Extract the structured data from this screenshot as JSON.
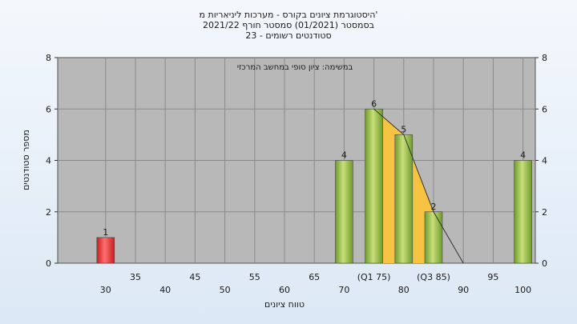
{
  "chart_data": {
    "type": "bar",
    "title_lines": [
      "היסטוגרמת ציונים בקורס - מערכות ליניאריות מ'",
      "בסמסטר  (01/2021)  סמסטר חורף 2021/22",
      "23 - סטודנטים רשומים"
    ],
    "annotation": "במשימה: ציון סופי במחשב המרכזי",
    "xlabel": "טווח ציונים",
    "ylabel": "מספר סטודנטים",
    "ylim": [
      0,
      8
    ],
    "yticks": [
      0,
      2,
      4,
      6,
      8
    ],
    "grid": true,
    "x_tick_labels": [
      {
        "x": 30,
        "label": "30",
        "row": 2
      },
      {
        "x": 35,
        "label": "35",
        "row": 1
      },
      {
        "x": 40,
        "label": "40",
        "row": 2
      },
      {
        "x": 45,
        "label": "45",
        "row": 1
      },
      {
        "x": 50,
        "label": "50",
        "row": 2
      },
      {
        "x": 55,
        "label": "55",
        "row": 1
      },
      {
        "x": 60,
        "label": "60",
        "row": 2
      },
      {
        "x": 65,
        "label": "65",
        "row": 1
      },
      {
        "x": 70,
        "label": "70",
        "row": 2
      },
      {
        "x": 75,
        "label": "(Q1 75)",
        "row": 1
      },
      {
        "x": 80,
        "label": "80",
        "row": 2
      },
      {
        "x": 85,
        "label": "(Q3 85)",
        "row": 1
      },
      {
        "x": 90,
        "label": "90",
        "row": 2
      },
      {
        "x": 95,
        "label": "95",
        "row": 1
      },
      {
        "x": 100,
        "label": "100",
        "row": 2
      }
    ],
    "bars": [
      {
        "x": 30,
        "value": 1,
        "color": "red"
      },
      {
        "x": 70,
        "value": 4,
        "color": "green"
      },
      {
        "x": 75,
        "value": 6,
        "color": "green"
      },
      {
        "x": 80,
        "value": 5,
        "color": "green"
      },
      {
        "x": 85,
        "value": 2,
        "color": "green"
      },
      {
        "x": 100,
        "value": 4,
        "color": "green"
      }
    ],
    "interquartile_area": {
      "color": "#f5c242",
      "points": [
        [
          75,
          6
        ],
        [
          80,
          5
        ],
        [
          85,
          2
        ]
      ]
    },
    "trend_line": {
      "points": [
        [
          75,
          6
        ],
        [
          80,
          5
        ],
        [
          85,
          2
        ],
        [
          90,
          0
        ]
      ]
    },
    "colors": {
      "plot_bg": "#b8b8b8",
      "green_light": "#c8e07a",
      "green_dark": "#6f9a2c",
      "red_light": "#ff7070",
      "red_dark": "#c81e1e"
    }
  }
}
